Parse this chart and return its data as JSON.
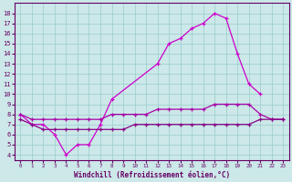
{
  "xlabel": "Windchill (Refroidissement éolien,°C)",
  "series": {
    "s1_x": [
      0,
      1,
      2,
      3,
      4,
      5,
      6,
      7,
      8,
      9,
      10,
      11,
      12,
      13,
      14,
      15,
      16,
      17,
      18,
      19,
      20,
      21,
      22,
      23
    ],
    "s1_y": [
      8,
      7,
      7,
      6,
      4,
      5,
      5,
      7,
      9.5,
      null,
      null,
      null,
      13,
      15,
      15.5,
      16.5,
      17,
      18,
      17.5,
      14,
      11,
      10,
      null,
      null
    ],
    "s2_x": [
      0,
      1,
      2,
      3,
      4,
      5,
      6,
      7,
      8,
      9,
      10,
      11,
      12,
      13,
      14,
      15,
      16,
      17,
      18,
      19,
      20,
      21,
      22,
      23
    ],
    "s2_y": [
      8,
      7.5,
      7.5,
      7.5,
      7.5,
      7.5,
      7.5,
      7.5,
      8,
      8,
      8,
      8,
      8.5,
      8.5,
      8.5,
      8.5,
      8.5,
      9,
      9,
      9,
      9,
      8,
      7.5,
      7.5
    ],
    "s3_x": [
      0,
      1,
      2,
      3,
      4,
      5,
      6,
      7,
      8,
      9,
      10,
      11,
      12,
      13,
      14,
      15,
      16,
      17,
      18,
      19,
      20,
      21,
      22,
      23
    ],
    "s3_y": [
      7.5,
      7,
      6.5,
      6.5,
      6.5,
      6.5,
      6.5,
      6.5,
      6.5,
      6.5,
      7,
      7,
      7,
      7,
      7,
      7,
      7,
      7,
      7,
      7,
      7,
      7.5,
      7.5,
      7.5
    ]
  },
  "colors": {
    "line_main": "#cc00cc",
    "line_upper": "#aa00aa",
    "line_lower": "#880088",
    "background": "#cce8e8",
    "grid": "#99cccc",
    "text": "#660066",
    "axis": "#660066"
  },
  "ylim": [
    3.5,
    19.0
  ],
  "xlim": [
    -0.5,
    23.5
  ],
  "yticks": [
    4,
    5,
    6,
    7,
    8,
    9,
    10,
    11,
    12,
    13,
    14,
    15,
    16,
    17,
    18
  ],
  "xticks": [
    0,
    1,
    2,
    3,
    4,
    5,
    6,
    7,
    8,
    9,
    10,
    11,
    12,
    13,
    14,
    15,
    16,
    17,
    18,
    19,
    20,
    21,
    22,
    23
  ]
}
